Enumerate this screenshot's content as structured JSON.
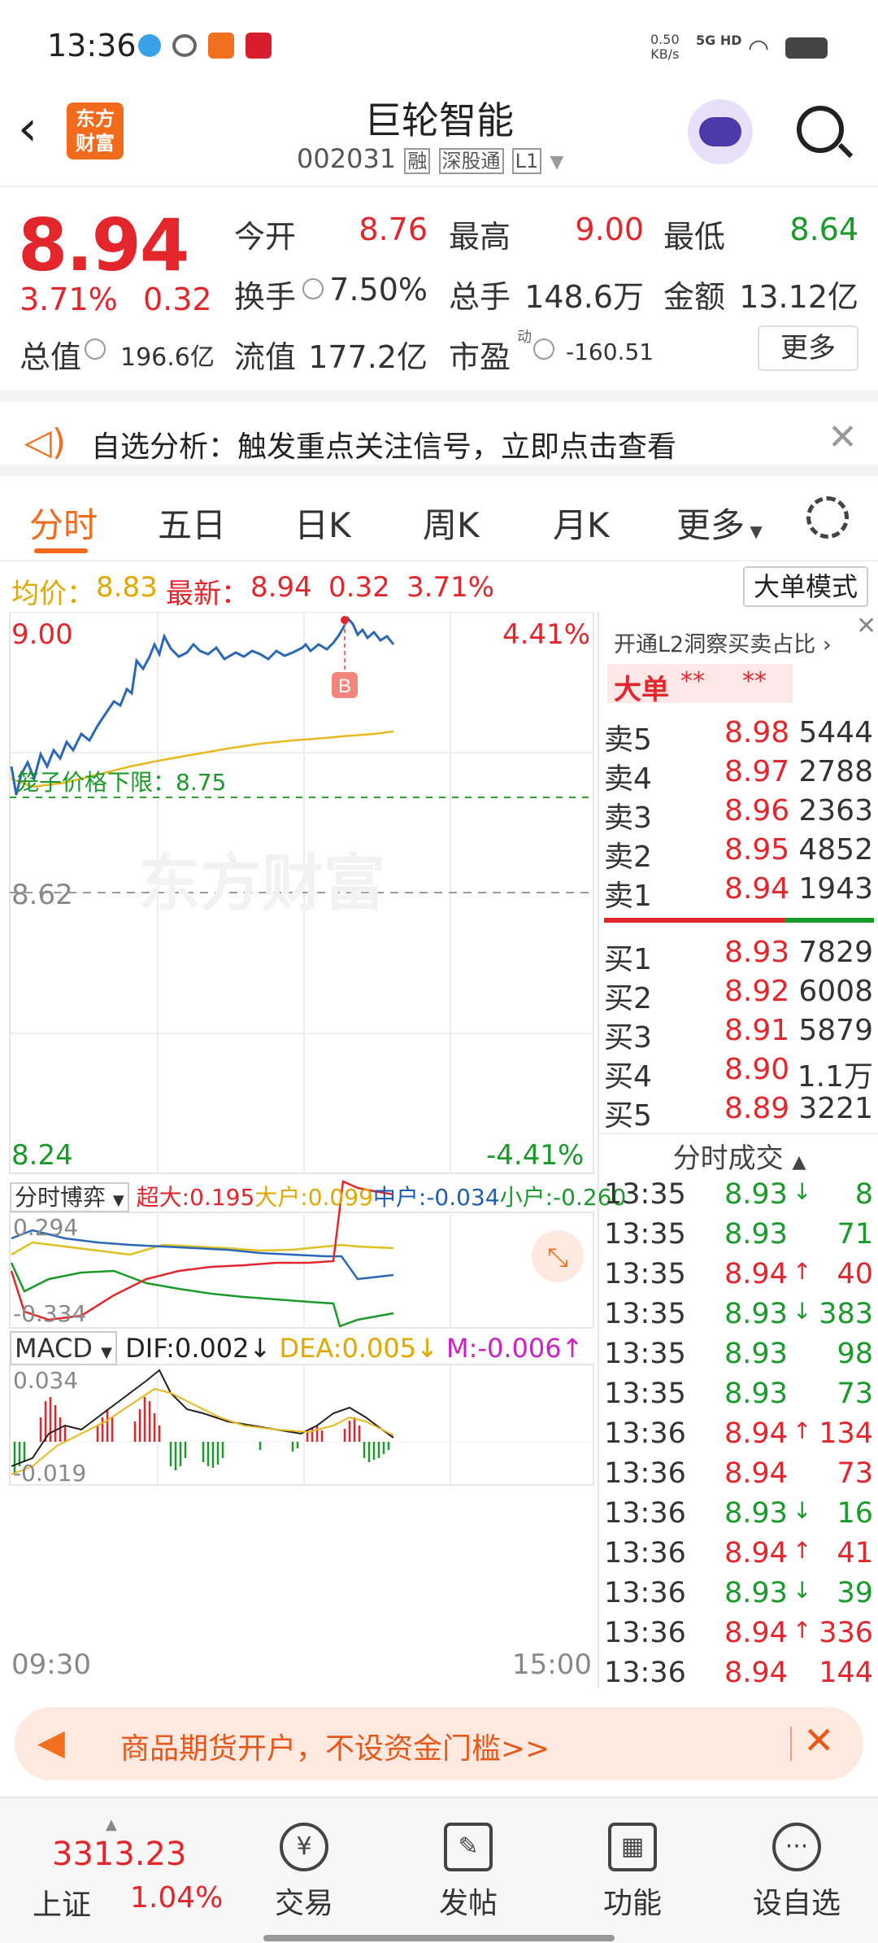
{
  "status": {
    "time": "13:36",
    "net_speed": "0.50",
    "net_unit": "KB/s",
    "net_type": "5G HD"
  },
  "header": {
    "logo_line1": "东方",
    "logo_line2": "财富",
    "title": "巨轮智能",
    "code": "002031",
    "tag1": "融",
    "tag2": "深股通",
    "tag3": "L1"
  },
  "quote": {
    "price": "8.94",
    "change_pct": "3.71%",
    "change": "0.32",
    "open_label": "今开",
    "open": "8.76",
    "high_label": "最高",
    "high": "9.00",
    "low_label": "最低",
    "low": "8.64",
    "turnover_label": "换手",
    "turnover": "7.50%",
    "volume_label": "总手",
    "volume": "148.6万",
    "amount_label": "金额",
    "amount": "13.12亿",
    "mcap_label": "总值",
    "mcap": "196.6亿",
    "float_label": "流值",
    "float": "177.2亿",
    "pe_label": "市盈",
    "pe_sup": "动",
    "pe": "-160.51",
    "more_button": "更多"
  },
  "notice": {
    "text": "自选分析：触发重点关注信号，立即点击查看"
  },
  "tabs": [
    "分时",
    "五日",
    "日K",
    "周K",
    "月K",
    "更多"
  ],
  "infoline": {
    "avg_label": "均价：",
    "avg": "8.83",
    "latest_label": "最新：",
    "latest": "8.94",
    "chg": "0.32",
    "pct": "3.71%",
    "mode_button": "大单模式"
  },
  "chart": {
    "y_top": "9.00",
    "y_top_pct": "4.41%",
    "y_bottom": "8.24",
    "y_bottom_pct": "-4.41%",
    "prev_close": "8.62",
    "limit_label": "笼子价格下限：8.75",
    "marker": "B",
    "watermark": "东方财富",
    "time_start": "09:30",
    "time_end": "15:00"
  },
  "flow": {
    "dropdown": "分时博弈",
    "super_label": "超大:",
    "super": "0.195",
    "big_label": "大户:",
    "big": "0.099",
    "mid_label": "中户:",
    "mid": "-0.034",
    "small_label": "小户:",
    "small": "-0.260",
    "ymax": "0.294",
    "ymin": "-0.334"
  },
  "macd": {
    "dropdown": "MACD",
    "dif_label": "DIF:",
    "dif": "0.002",
    "dea_label": "DEA:",
    "dea": "0.005",
    "m_label": "M:",
    "m": "-0.006",
    "ymax": "0.034",
    "ymin": "-0.019"
  },
  "orderbook": {
    "l2_link": "开通L2洞察买卖占比",
    "big_label": "大单",
    "big_a": "**",
    "big_b": "**",
    "asks": [
      {
        "label": "卖5",
        "price": "8.98",
        "vol": "5444"
      },
      {
        "label": "卖4",
        "price": "8.97",
        "vol": "2788"
      },
      {
        "label": "卖3",
        "price": "8.96",
        "vol": "2363"
      },
      {
        "label": "卖2",
        "price": "8.95",
        "vol": "4852"
      },
      {
        "label": "卖1",
        "price": "8.94",
        "vol": "1943"
      }
    ],
    "bids": [
      {
        "label": "买1",
        "price": "8.93",
        "vol": "7829"
      },
      {
        "label": "买2",
        "price": "8.92",
        "vol": "6008"
      },
      {
        "label": "买3",
        "price": "8.91",
        "vol": "5879"
      },
      {
        "label": "买4",
        "price": "8.90",
        "vol": "1.1万"
      },
      {
        "label": "买5",
        "price": "8.89",
        "vol": "3221"
      }
    ]
  },
  "trades": {
    "title": "分时成交",
    "rows": [
      {
        "time": "13:35",
        "price": "8.93",
        "dir": "↓",
        "vol": "8"
      },
      {
        "time": "13:35",
        "price": "8.93",
        "dir": "",
        "vol": "71"
      },
      {
        "time": "13:35",
        "price": "8.94",
        "dir": "↑",
        "vol": "40"
      },
      {
        "time": "13:35",
        "price": "8.93",
        "dir": "↓",
        "vol": "383"
      },
      {
        "time": "13:35",
        "price": "8.93",
        "dir": "",
        "vol": "98"
      },
      {
        "time": "13:35",
        "price": "8.93",
        "dir": "",
        "vol": "73"
      },
      {
        "time": "13:36",
        "price": "8.94",
        "dir": "↑",
        "vol": "134"
      },
      {
        "time": "13:36",
        "price": "8.94",
        "dir": "",
        "vol": "73"
      },
      {
        "time": "13:36",
        "price": "8.93",
        "dir": "↓",
        "vol": "16"
      },
      {
        "time": "13:36",
        "price": "8.94",
        "dir": "↑",
        "vol": "41"
      },
      {
        "time": "13:36",
        "price": "8.93",
        "dir": "↓",
        "vol": "39"
      },
      {
        "time": "13:36",
        "price": "8.94",
        "dir": "↑",
        "vol": "336"
      },
      {
        "time": "13:36",
        "price": "8.94",
        "dir": "",
        "vol": "144"
      }
    ]
  },
  "ad": {
    "text": "商品期货开户，不设资金门槛>>"
  },
  "bottom": {
    "index_value": "3313.23",
    "index_name": "上证",
    "index_pct": "1.04%",
    "nav": [
      "交易",
      "发帖",
      "功能",
      "设自选"
    ]
  }
}
